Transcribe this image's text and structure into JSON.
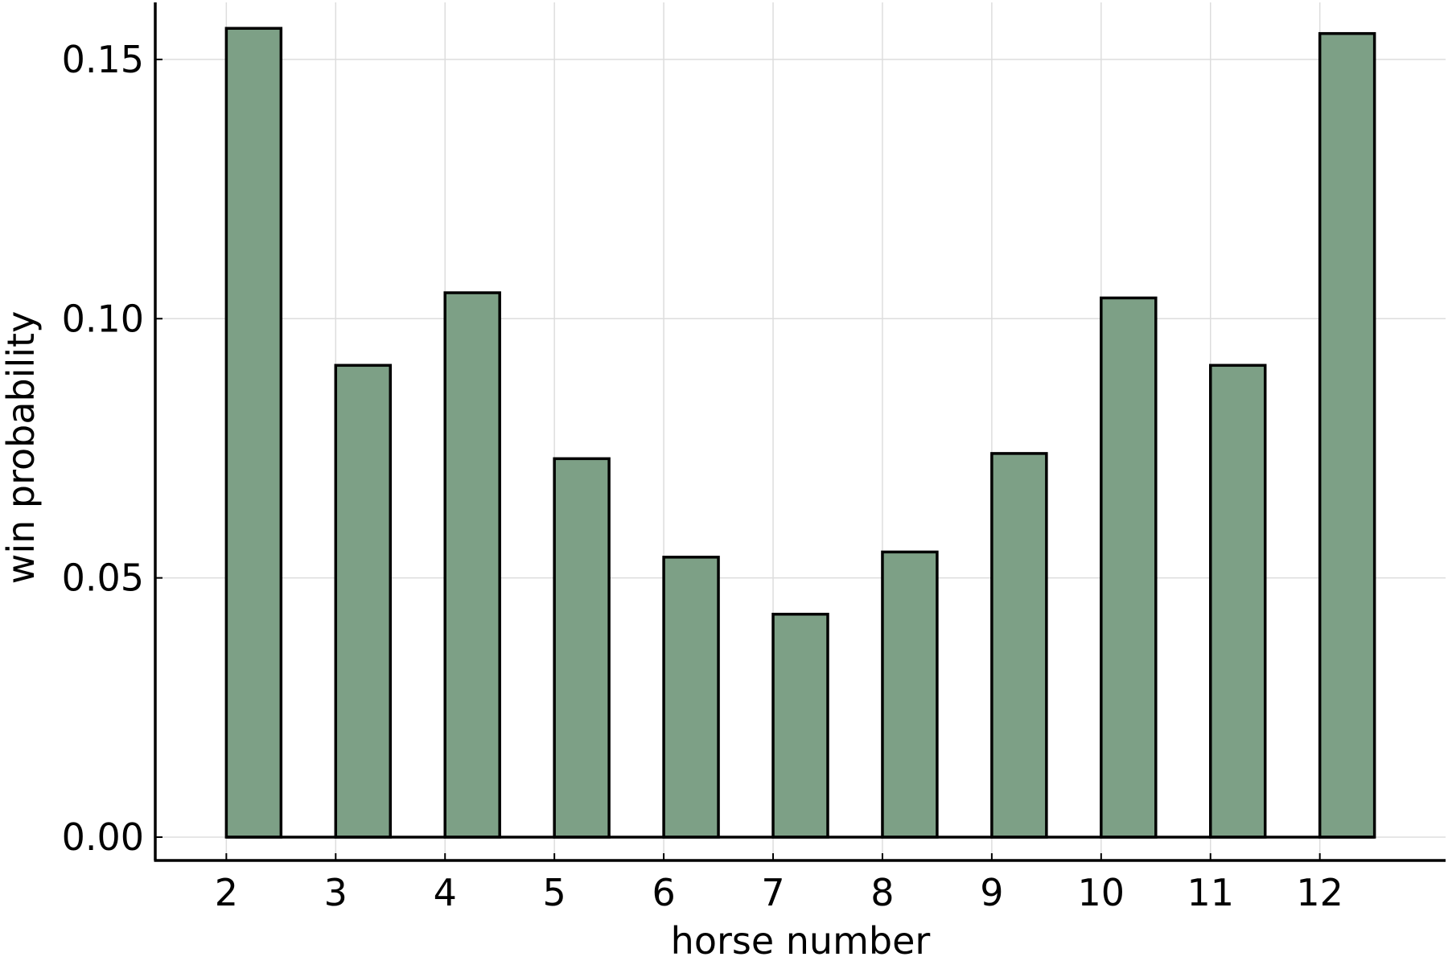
{
  "chart_data": {
    "type": "bar",
    "categories": [
      "2",
      "3",
      "4",
      "5",
      "6",
      "7",
      "8",
      "9",
      "10",
      "11",
      "12"
    ],
    "x": [
      2,
      3,
      4,
      5,
      6,
      7,
      8,
      9,
      10,
      11,
      12
    ],
    "values": [
      0.156,
      0.091,
      0.105,
      0.073,
      0.054,
      0.043,
      0.055,
      0.074,
      0.104,
      0.091,
      0.155
    ],
    "title": "",
    "xlabel": "horse number",
    "ylabel": "win probability",
    "xlim": [
      1.35,
      13.15
    ],
    "ylim": [
      -0.0045,
      0.161
    ],
    "yticks": [
      0.0,
      0.05,
      0.1,
      0.15
    ],
    "ytick_labels": [
      "0.00",
      "0.05",
      "0.10",
      "0.15"
    ],
    "xtick_labels": [
      "2",
      "3",
      "4",
      "5",
      "6",
      "7",
      "8",
      "9",
      "10",
      "11",
      "12"
    ],
    "grid": true,
    "legend": "none",
    "bar_color": "#7da086",
    "bar_edge_color": "#000000"
  }
}
